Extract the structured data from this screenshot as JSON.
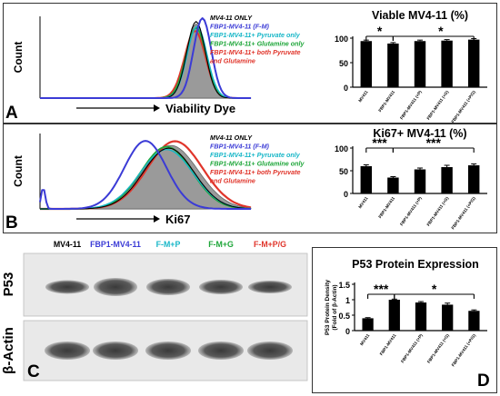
{
  "panel_a": {
    "letter": "A",
    "histogram": {
      "ylabel": "Count",
      "xlabel": "Viability Dye",
      "legend": [
        {
          "label": "MV4-11 ONLY",
          "color": "#000000"
        },
        {
          "label": "FBP1-MV4-11 (F-M)",
          "color": "#3b3bd6"
        },
        {
          "label": "FBP1-MV4-11+ Pyruvate only",
          "color": "#18b7c8"
        },
        {
          "label": "FBP1-MV4-11+ Glutamine only",
          "color": "#1fa63a"
        },
        {
          "label": "FBP1-MV4-11+ both Pyruvate\nand Glutamine",
          "color": "#e0352b"
        }
      ]
    }
  },
  "panel_b": {
    "letter": "B",
    "histogram": {
      "ylabel": "Count",
      "xlabel": "Ki67",
      "legend": [
        {
          "label": "MV4-11 ONLY",
          "color": "#000000"
        },
        {
          "label": "FBP1-MV4-11 (F-M)",
          "color": "#3b3bd6"
        },
        {
          "label": "FBP1-MV4-11+ Pyruvate only",
          "color": "#18b7c8"
        },
        {
          "label": "FBP1-MV4-11+ Glutamine only",
          "color": "#1fa63a"
        },
        {
          "label": "FBP1-MV4-11+ both Pyruvate\nand Glutamine",
          "color": "#e0352b"
        }
      ]
    }
  },
  "panel_c": {
    "letter": "C",
    "lane_labels": [
      {
        "label": "MV4-11",
        "color": "#000000"
      },
      {
        "label": "FBP1-MV4-11",
        "color": "#3b3bd6"
      },
      {
        "label": "F-M+P",
        "color": "#18b7c8"
      },
      {
        "label": "F-M+G",
        "color": "#1fa63a"
      },
      {
        "label": "F-M+P/G",
        "color": "#e0352b"
      }
    ],
    "blot_labels": [
      "P53",
      "β-Actin"
    ]
  },
  "panel_d": {
    "letter": "D"
  },
  "chart_data": [
    {
      "type": "bar",
      "title": "Viable  MV4-11 (%)",
      "categories": [
        "MV411",
        "FBP1-MV411",
        "FBP1-MV411 (+P)",
        "FBP1-MV411 (+G)",
        "FBP1-MV411 (+P/G)"
      ],
      "values": [
        94,
        89,
        94,
        95,
        97
      ],
      "errors": [
        2,
        2,
        2,
        2,
        2
      ],
      "ylim": [
        0,
        100
      ],
      "yticks": [
        "0",
        "50",
        "100"
      ],
      "significance": [
        {
          "label": "*",
          "from": 0,
          "to": 1
        },
        {
          "label": "*",
          "from": 1,
          "to": 4
        }
      ]
    },
    {
      "type": "bar",
      "title": "Ki67+ MV4-11 (%)",
      "categories": [
        "MV411",
        "FBP1-MV411",
        "FBP1-MV411 (+P)",
        "FBP1-MV411 (+G)",
        "FBP1-MV411 (+P/G)"
      ],
      "values": [
        60,
        35,
        53,
        58,
        62
      ],
      "errors": [
        3,
        2,
        3,
        4,
        3
      ],
      "ylim": [
        0,
        100
      ],
      "yticks": [
        "0",
        "50",
        "100"
      ],
      "significance": [
        {
          "label": "***",
          "from": 0,
          "to": 1
        },
        {
          "label": "***",
          "from": 1,
          "to": 4
        }
      ]
    },
    {
      "type": "bar",
      "title": "P53 Protein Expression",
      "ylabel": "P53 Protein Density\n(Fold of β-Actin)",
      "categories": [
        "MV411",
        "FBP1-MV411",
        "FBP1-MV411 (+P)",
        "FBP1-MV411 (+G)",
        "FBP1-MV411 (+P/G)"
      ],
      "values": [
        0.4,
        1.0,
        0.91,
        0.84,
        0.64
      ],
      "errors": [
        0.02,
        0.02,
        0.03,
        0.05,
        0.03
      ],
      "ylim": [
        0,
        1.5
      ],
      "yticks": [
        "0",
        "0.5",
        "1",
        "1.5"
      ],
      "significance": [
        {
          "label": "***",
          "from": 0,
          "to": 1
        },
        {
          "label": "*",
          "from": 1,
          "to": 4
        }
      ]
    }
  ]
}
